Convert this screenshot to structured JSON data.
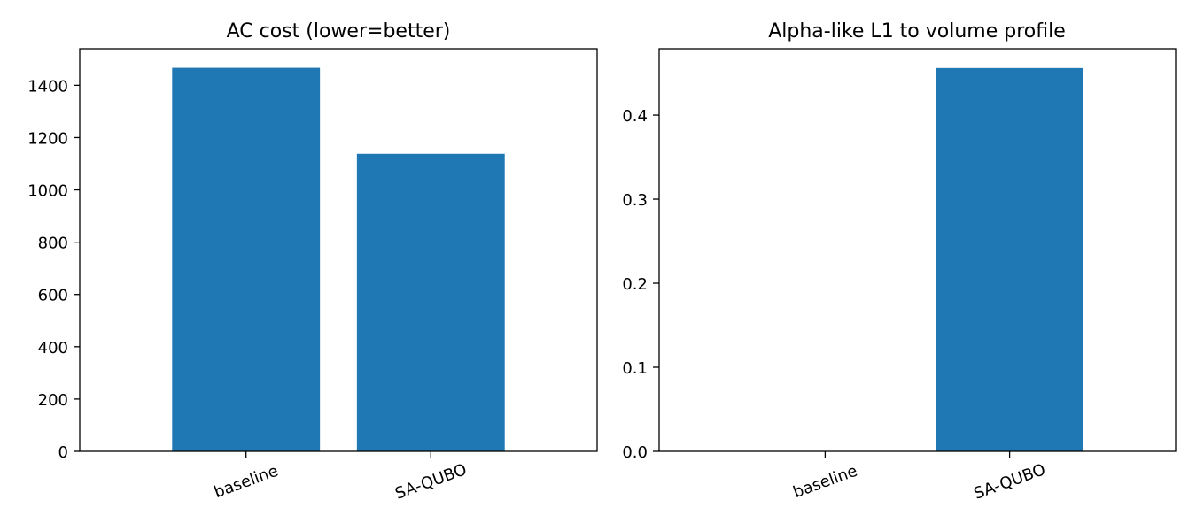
{
  "chart_data": [
    {
      "type": "bar",
      "title": "AC cost (lower=better)",
      "xlabel": "",
      "ylabel": "",
      "categories": [
        "baseline",
        "SA-QUBO"
      ],
      "values": [
        1467,
        1138
      ],
      "ylim": [
        0,
        1540
      ],
      "yticks": [
        0,
        200,
        400,
        600,
        800,
        1000,
        1200,
        1400
      ],
      "ytick_labels": [
        "0",
        "200",
        "400",
        "600",
        "800",
        "1000",
        "1200",
        "1400"
      ],
      "grid": false,
      "bar_color": "#1f77b4"
    },
    {
      "type": "bar",
      "title": "Alpha-like L1 to volume profile",
      "xlabel": "",
      "ylabel": "",
      "categories": [
        "baseline",
        "SA-QUBO"
      ],
      "values": [
        0.0,
        0.456
      ],
      "ylim": [
        0,
        0.479
      ],
      "yticks": [
        0.0,
        0.1,
        0.2,
        0.3,
        0.4
      ],
      "ytick_labels": [
        "0.0",
        "0.1",
        "0.2",
        "0.3",
        "0.4"
      ],
      "grid": false,
      "bar_color": "#1f77b4"
    }
  ]
}
